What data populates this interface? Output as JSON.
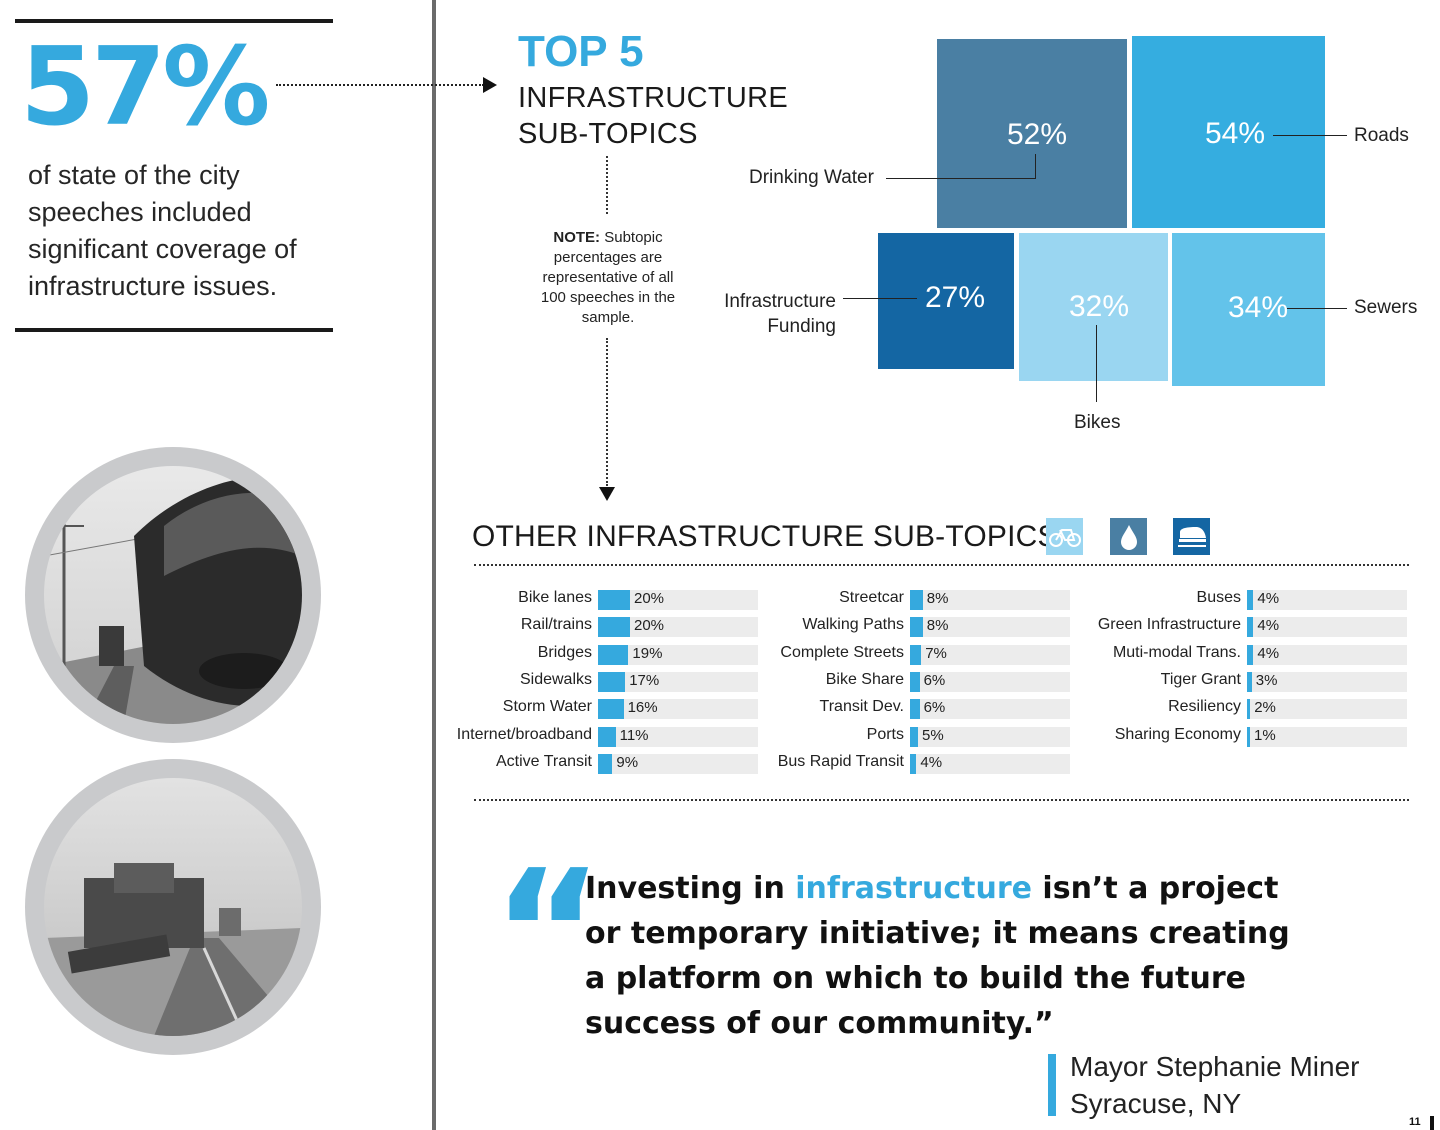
{
  "stat": {
    "value": "57%",
    "description": "of state of the city speeches included significant coverage of infrastructure issues."
  },
  "top5": {
    "title": "TOP 5",
    "subtitle_line1": "INFRASTRUCTURE",
    "subtitle_line2": "SUB-TOPICS",
    "note_bold": "NOTE:",
    "note_text": "Subtopic percentages are representative of all 100 speeches in the sample.",
    "tiles": [
      {
        "name": "Drinking Water",
        "value": "52%",
        "color": "#4a7fa3"
      },
      {
        "name": "Roads",
        "value": "54%",
        "color": "#35ade0"
      },
      {
        "name": "Infrastructure Funding",
        "value": "27%",
        "color": "#1466a3"
      },
      {
        "name": "Bikes",
        "value": "32%",
        "color": "#9ad6f1"
      },
      {
        "name": "Sewers",
        "value": "34%",
        "color": "#63c3ea"
      }
    ],
    "labels": {
      "drinking_water": "Drinking Water",
      "roads": "Roads",
      "funding_line1": "Infrastructure",
      "funding_line2": "Funding",
      "bikes": "Bikes",
      "sewers": "Sewers"
    }
  },
  "other": {
    "title": "OTHER INFRASTRUCTURE SUB-TOPICS",
    "icons": [
      "bicycle-icon",
      "water-drop-icon",
      "train-icon"
    ],
    "columns": [
      [
        {
          "label": "Bike lanes",
          "value": "20%",
          "pct": 20
        },
        {
          "label": "Rail/trains",
          "value": "20%",
          "pct": 20
        },
        {
          "label": "Bridges",
          "value": "19%",
          "pct": 19
        },
        {
          "label": "Sidewalks",
          "value": "17%",
          "pct": 17
        },
        {
          "label": "Storm Water",
          "value": "16%",
          "pct": 16
        },
        {
          "label": "Internet/broadband",
          "value": "11%",
          "pct": 11
        },
        {
          "label": "Active Transit",
          "value": "9%",
          "pct": 9
        }
      ],
      [
        {
          "label": "Streetcar",
          "value": "8%",
          "pct": 8
        },
        {
          "label": "Walking Paths",
          "value": "8%",
          "pct": 8
        },
        {
          "label": "Complete Streets",
          "value": "7%",
          "pct": 7
        },
        {
          "label": "Bike Share",
          "value": "6%",
          "pct": 6
        },
        {
          "label": "Transit Dev.",
          "value": "6%",
          "pct": 6
        },
        {
          "label": "Ports",
          "value": "5%",
          "pct": 5
        },
        {
          "label": "Bus Rapid Transit",
          "value": "4%",
          "pct": 4
        }
      ],
      [
        {
          "label": "Buses",
          "value": "4%",
          "pct": 4
        },
        {
          "label": "Green Infrastructure",
          "value": "4%",
          "pct": 4
        },
        {
          "label": "Muti-modal Trans.",
          "value": "4%",
          "pct": 4
        },
        {
          "label": "Tiger Grant",
          "value": "3%",
          "pct": 3
        },
        {
          "label": "Resiliency",
          "value": "2%",
          "pct": 2
        },
        {
          "label": "Sharing Economy",
          "value": "1%",
          "pct": 1
        }
      ]
    ]
  },
  "quote": {
    "mark": "“",
    "before": "Investing in ",
    "highlight": "infrastructure",
    "after": " isn’t a project or temporary initiative; it means creating a platform on which to build the future success of our community.”",
    "speaker": "Mayor Stephanie Miner",
    "place": "Syracuse, NY"
  },
  "page_number": "11",
  "colors": {
    "accent": "#35a9de"
  }
}
